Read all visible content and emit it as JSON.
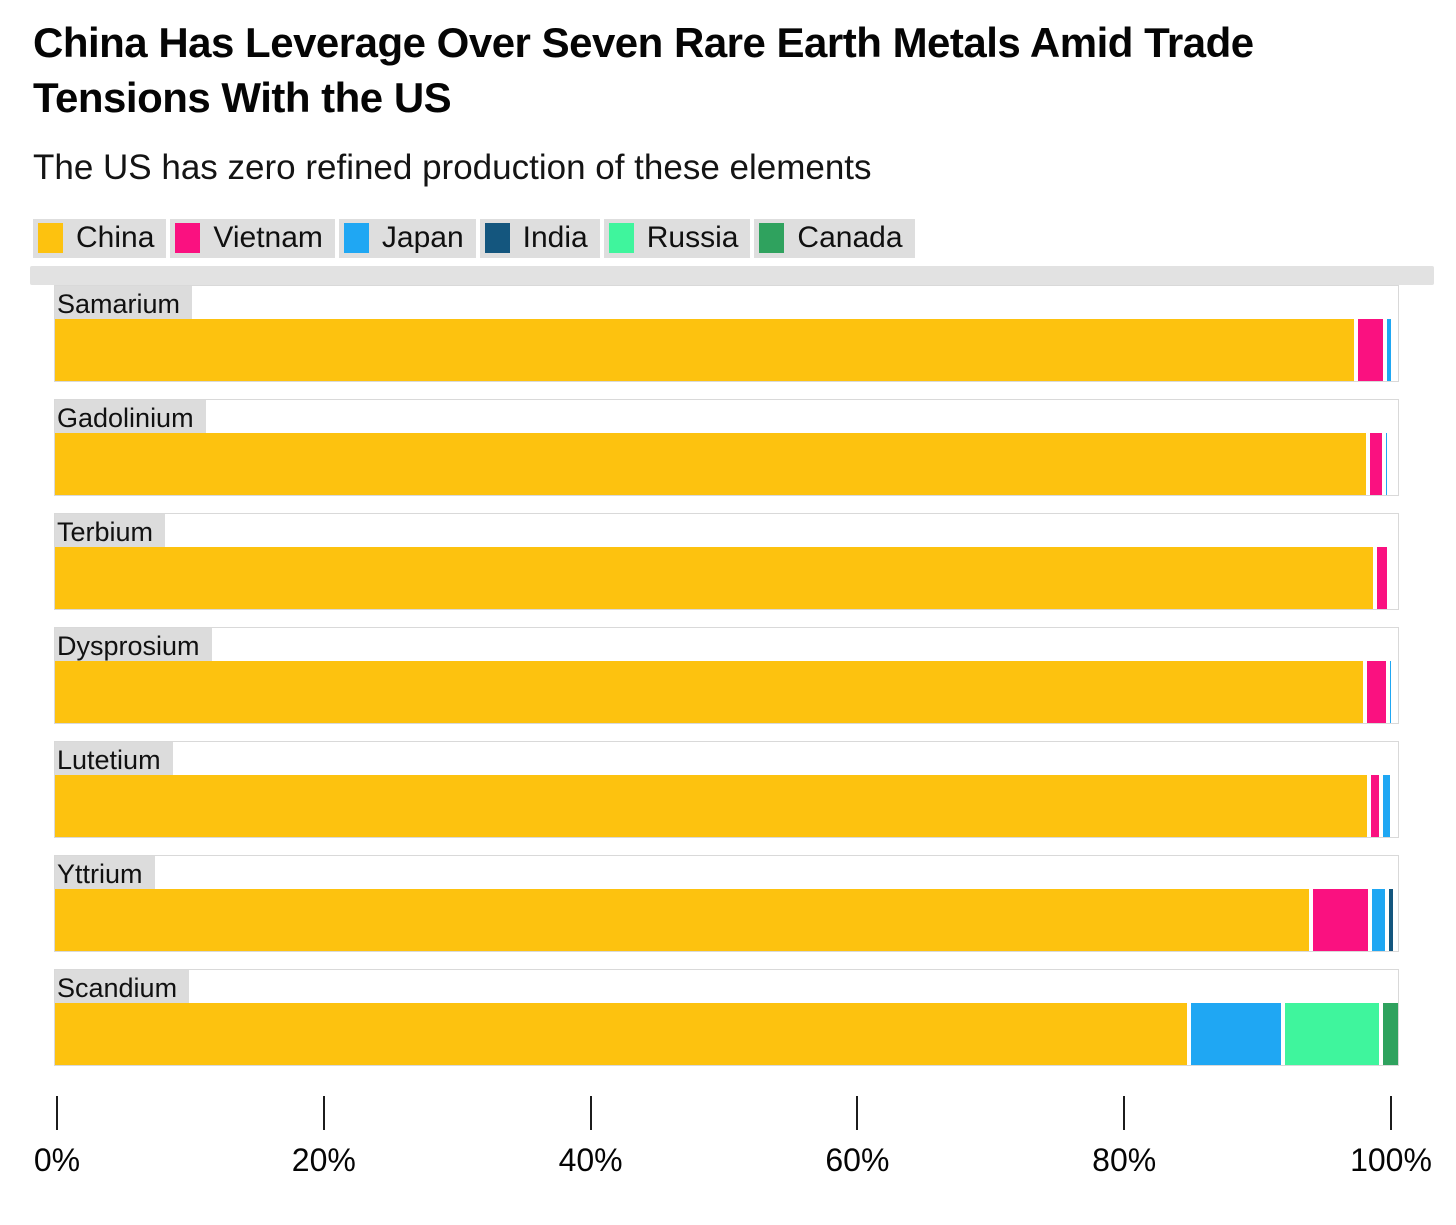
{
  "header": {
    "title_line1": "China Has Leverage Over Seven Rare Earth Metals Amid Trade",
    "title_line2": "Tensions With the US",
    "subtitle": "The US has zero refined production of these elements"
  },
  "legend": {
    "items": [
      {
        "label": "China",
        "color": "#FDC20F"
      },
      {
        "label": "Vietnam",
        "color": "#FA1180"
      },
      {
        "label": "Japan",
        "color": "#1FA7F3"
      },
      {
        "label": "India",
        "color": "#14567E"
      },
      {
        "label": "Russia",
        "color": "#3FF59D"
      },
      {
        "label": "Canada",
        "color": "#2FA25E"
      }
    ]
  },
  "chart_data": {
    "type": "bar",
    "orientation": "horizontal",
    "stacked": true,
    "unit": "% share of refined production",
    "title": "China Has Leverage Over Seven Rare Earth Metals Amid Trade Tensions With the US",
    "subtitle": "The US has zero refined production of these elements",
    "categories": [
      "Samarium",
      "Gadolinium",
      "Terbium",
      "Dysprosium",
      "Lutetium",
      "Yttrium",
      "Scandium"
    ],
    "series": [
      {
        "name": "China",
        "color": "#FDC20F",
        "values": [
          96.7,
          97.6,
          98.1,
          97.4,
          97.7,
          93.4,
          84.3
        ]
      },
      {
        "name": "Vietnam",
        "color": "#FA1180",
        "values": [
          2.2,
          1.2,
          1.1,
          1.7,
          0.9,
          4.4,
          0
        ]
      },
      {
        "name": "Japan",
        "color": "#1FA7F3",
        "values": [
          0.6,
          0.4,
          0.2,
          0.4,
          0.8,
          1.2,
          7.0
        ]
      },
      {
        "name": "India",
        "color": "#14567E",
        "values": [
          0,
          0,
          0,
          0,
          0,
          0.6,
          0
        ]
      },
      {
        "name": "Russia",
        "color": "#3FF59D",
        "values": [
          0,
          0.2,
          0,
          0,
          0,
          0,
          7.3
        ]
      },
      {
        "name": "Canada",
        "color": "#2FA25E",
        "values": [
          0,
          0,
          0,
          0,
          0,
          0,
          1.4
        ]
      }
    ],
    "x_axis": {
      "range": [
        0,
        100
      ],
      "ticks": [
        {
          "label": "0%",
          "value": 0
        },
        {
          "label": "20%",
          "value": 20
        },
        {
          "label": "40%",
          "value": 40
        },
        {
          "label": "60%",
          "value": 60
        },
        {
          "label": "80%",
          "value": 80
        },
        {
          "label": "100%",
          "value": 100
        }
      ]
    },
    "legend_position": "top",
    "grid": false
  }
}
